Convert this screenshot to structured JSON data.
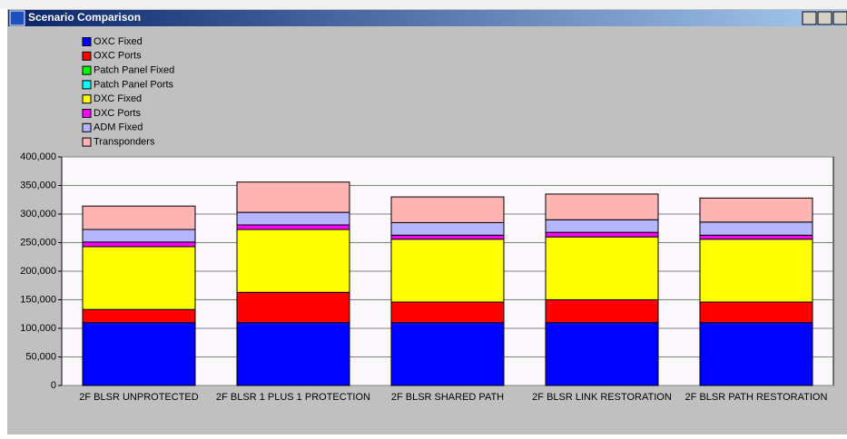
{
  "window_title": "Scenario Comparison",
  "chart_data": {
    "type": "stacked-bar",
    "categories": [
      "2F BLSR  UNPROTECTED",
      "2F BLSR  1 PLUS 1 PROTECTION",
      "2F BLSR  SHARED PATH",
      "2F BLSR  LINK RESTORATION",
      "2F BLSR  PATH RESTORATION"
    ],
    "series": [
      {
        "name": "OXC Fixed",
        "color": "#0000ff",
        "values": [
          110000,
          110000,
          110000,
          110000,
          110000
        ]
      },
      {
        "name": "OXC Ports",
        "color": "#ff0000",
        "values": [
          23000,
          53000,
          36000,
          40000,
          36000
        ]
      },
      {
        "name": "Patch Panel Fixed",
        "color": "#00ff00",
        "values": [
          0,
          0,
          0,
          0,
          0
        ]
      },
      {
        "name": "Patch Panel Ports",
        "color": "#00ffff",
        "values": [
          0,
          0,
          0,
          0,
          0
        ]
      },
      {
        "name": "DXC Fixed",
        "color": "#ffff00",
        "values": [
          110000,
          110000,
          110000,
          110000,
          110000
        ]
      },
      {
        "name": "DXC Ports",
        "color": "#ff00ff",
        "values": [
          8000,
          8000,
          7000,
          8000,
          7000
        ]
      },
      {
        "name": "ADM Fixed",
        "color": "#b4b4ff",
        "values": [
          22000,
          22000,
          22000,
          22000,
          23000
        ]
      },
      {
        "name": "Transponders",
        "color": "#ffb4b4",
        "values": [
          41000,
          53000,
          45000,
          45000,
          42000
        ]
      }
    ],
    "ylim": [
      0,
      400000
    ],
    "yticks": [
      0,
      {
        "value": 50000,
        "label": "50,000"
      },
      {
        "value": 100000,
        "label": "100,000"
      },
      {
        "value": 150000,
        "label": "150,000"
      },
      {
        "value": 200000,
        "label": "200,000"
      },
      {
        "value": 250000,
        "label": "250,000"
      },
      {
        "value": 300000,
        "label": "300,000"
      },
      {
        "value": 350000,
        "label": "350,000"
      },
      {
        "value": 400000,
        "label": "400,000"
      }
    ],
    "grid": true,
    "legend": "top-left"
  }
}
